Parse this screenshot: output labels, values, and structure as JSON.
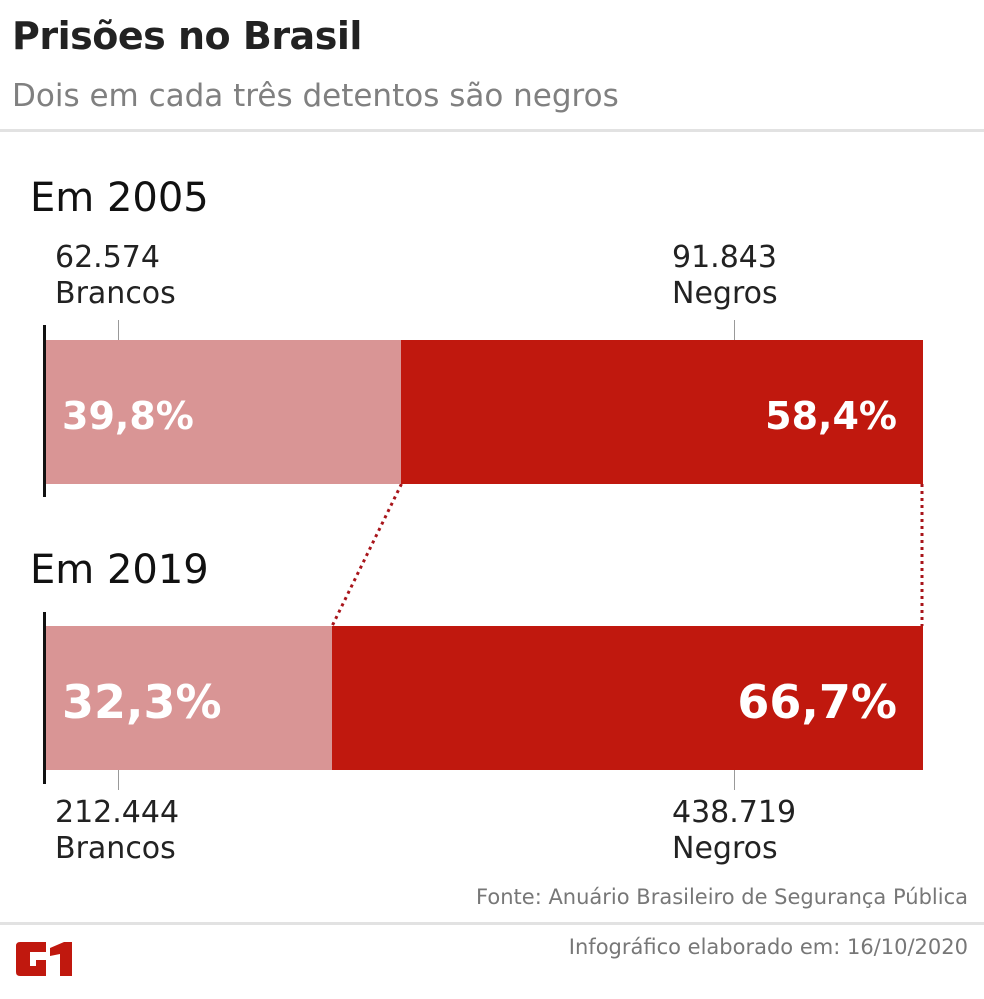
{
  "header": {
    "title": "Prisões no Brasil",
    "subtitle": "Dois em cada três detentos são negros"
  },
  "chart_data": {
    "type": "bar",
    "orientation": "horizontal-stacked",
    "categories": [
      "Em 2005",
      "Em 2019"
    ],
    "series": [
      {
        "name": "Brancos",
        "values": [
          39.8,
          32.3
        ],
        "counts": [
          "62.574",
          "212.444"
        ],
        "labels": [
          "39,8%",
          "32,3%"
        ],
        "color": "#d99595"
      },
      {
        "name": "Negros",
        "values": [
          58.4,
          66.7
        ],
        "counts": [
          "91.843",
          "438.719"
        ],
        "labels": [
          "58,4%",
          "66,7%"
        ],
        "color": "#c0180e"
      }
    ],
    "connector_color": "#a8141a"
  },
  "footer": {
    "source": "Fonte: Anuário Brasileiro de Segurança Pública",
    "date": "Infográfico elaborado em: 16/10/2020",
    "logo": "G1"
  }
}
